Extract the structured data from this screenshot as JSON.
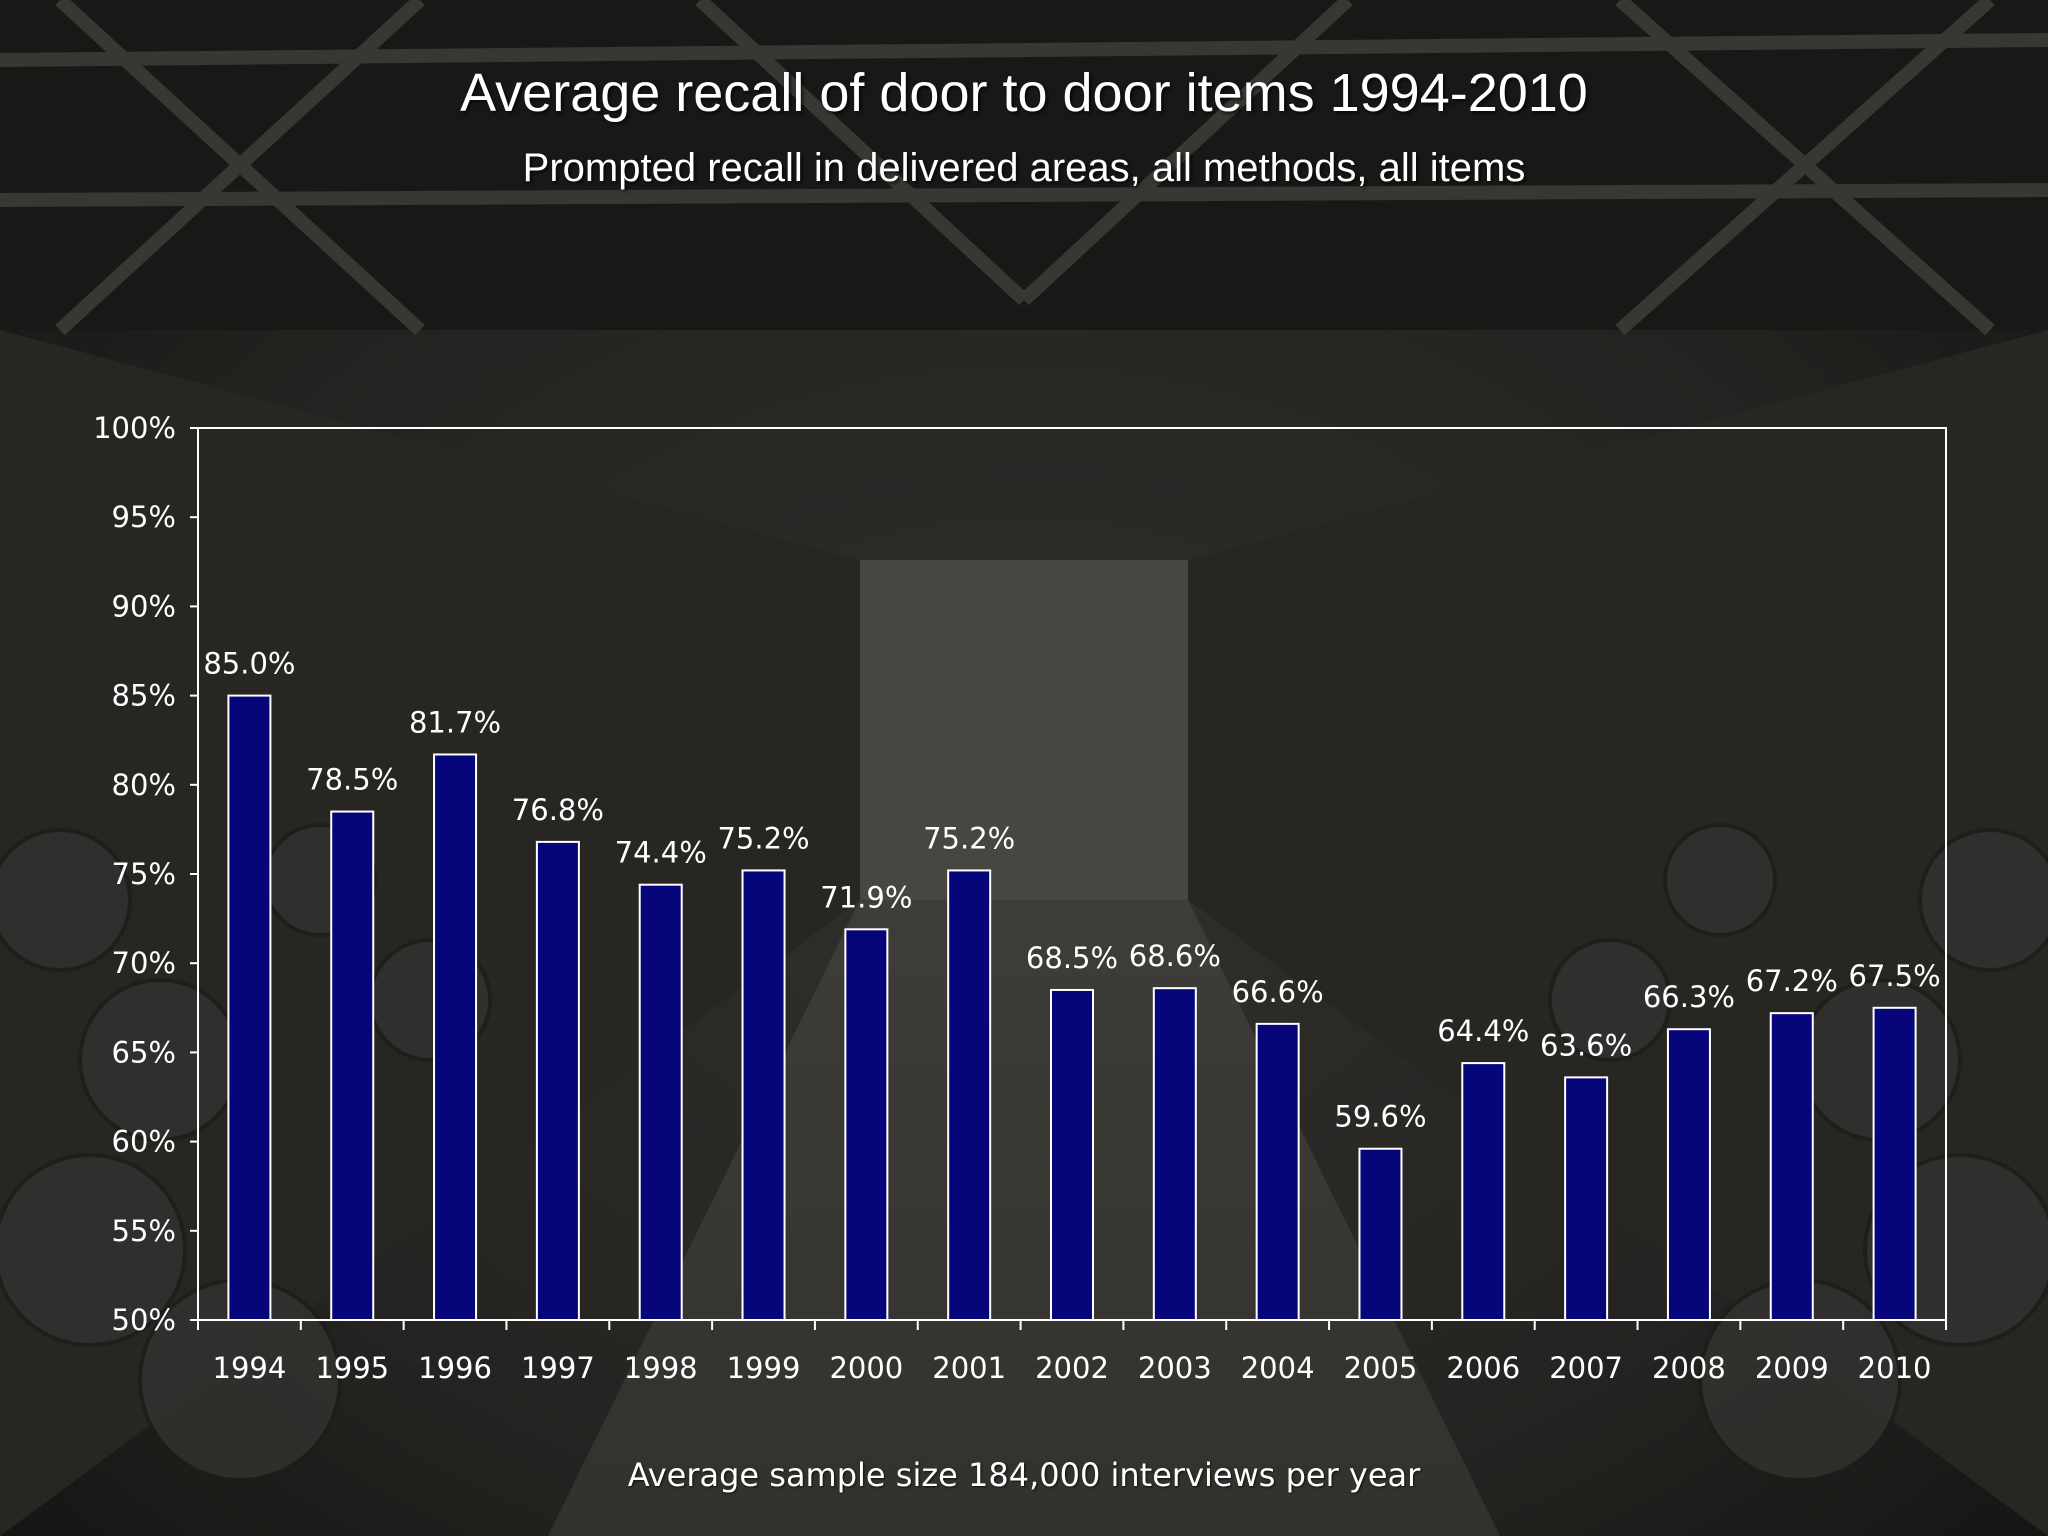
{
  "title": "Average recall of door to door items 1994-2010",
  "subtitle": "Prompted recall in delivered areas, all methods, all items",
  "footnote": "Average sample size 184,000 interviews per year",
  "colors": {
    "bar_fill": "#06067a",
    "bar_stroke": "#ffffff",
    "axis": "#ffffff",
    "text": "#ffffff",
    "background": "#2a2926"
  },
  "chart_data": {
    "type": "bar",
    "categories": [
      "1994",
      "1995",
      "1996",
      "1997",
      "1998",
      "1999",
      "2000",
      "2001",
      "2002",
      "2003",
      "2004",
      "2005",
      "2006",
      "2007",
      "2008",
      "2009",
      "2010"
    ],
    "values": [
      85.0,
      78.5,
      81.7,
      76.8,
      74.4,
      75.2,
      71.9,
      75.2,
      68.5,
      68.6,
      66.6,
      59.6,
      64.4,
      63.6,
      66.3,
      67.2,
      67.5
    ],
    "data_labels": [
      "85.0%",
      "78.5%",
      "81.7%",
      "76.8%",
      "74.4%",
      "75.2%",
      "71.9%",
      "75.2%",
      "68.5%",
      "68.6%",
      "66.6%",
      "59.6%",
      "64.4%",
      "63.6%",
      "66.3%",
      "67.2%",
      "67.5%"
    ],
    "ylim": [
      50,
      100
    ],
    "yticks": [
      50,
      55,
      60,
      65,
      70,
      75,
      80,
      85,
      90,
      95,
      100
    ],
    "ytick_labels": [
      "50%",
      "55%",
      "60%",
      "65%",
      "70%",
      "75%",
      "80%",
      "85%",
      "90%",
      "95%",
      "100%"
    ],
    "xlabel": "",
    "ylabel": "",
    "grid": false,
    "legend": "none"
  }
}
